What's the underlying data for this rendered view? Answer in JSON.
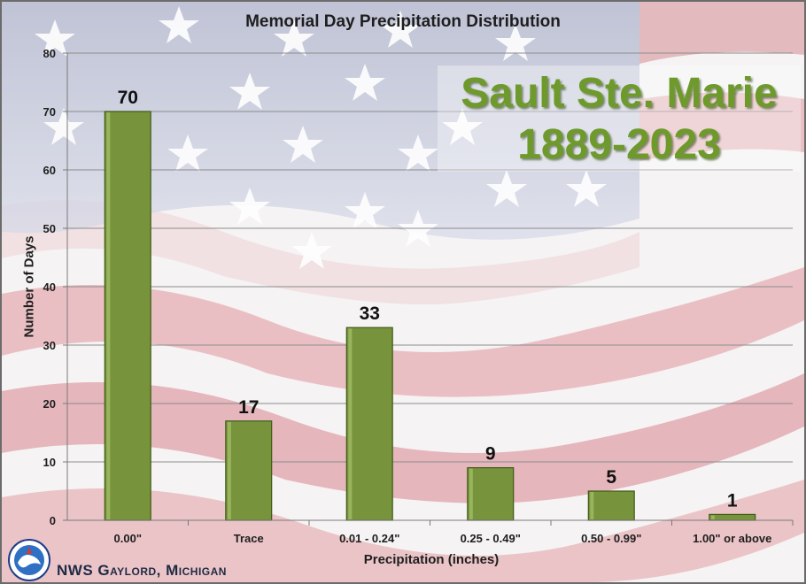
{
  "chart_data": {
    "type": "bar",
    "title": "Memorial Day Precipitation Distribution",
    "xlabel": "Precipitation (inches)",
    "ylabel": "Number of Days",
    "categories": [
      "0.00\"",
      "Trace",
      "0.01 - 0.24\"",
      "0.25 - 0.49\"",
      "0.50 - 0.99\"",
      "1.00\" or above"
    ],
    "values": [
      70,
      17,
      33,
      9,
      5,
      1
    ],
    "ylim": [
      0,
      80
    ],
    "yticks": [
      0,
      10,
      20,
      30,
      40,
      50,
      60,
      70,
      80
    ],
    "grid": true,
    "bar_color": "#77933c",
    "data_labels": true
  },
  "annotation": {
    "station": "Sault Ste. Marie",
    "years": "1889-2023"
  },
  "footer": {
    "credit": "NWS Gaylord, Michigan",
    "logo_icon": "nws-logo-icon"
  },
  "colors": {
    "stripe_red": "#c44550",
    "canton_blue": "#3c4a7a",
    "title_green": "#6e9a2c"
  }
}
